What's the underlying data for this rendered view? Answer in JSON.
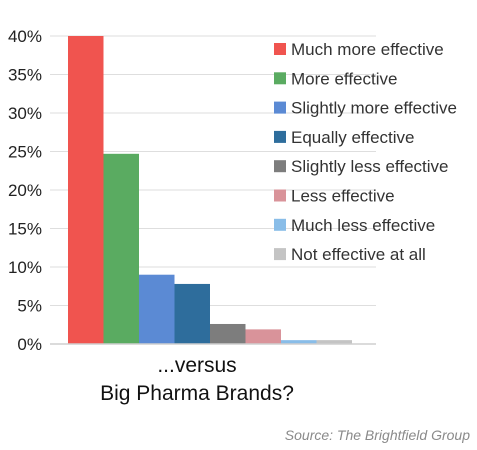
{
  "chart_data": {
    "type": "bar",
    "series": [
      {
        "name": "Much more effective",
        "value": 40,
        "color": "#f0544f"
      },
      {
        "name": "More effective",
        "value": 24.7,
        "color": "#5aab61"
      },
      {
        "name": "Slightly more effective",
        "value": 9,
        "color": "#5b8ad4"
      },
      {
        "name": "Equally effective",
        "value": 7.8,
        "color": "#2e6d9c"
      },
      {
        "name": "Slightly less effective",
        "value": 2.6,
        "color": "#7d7d7d"
      },
      {
        "name": "Less effective",
        "value": 1.9,
        "color": "#d9939a"
      },
      {
        "name": "Much less effective",
        "value": 0.5,
        "color": "#89bde8"
      },
      {
        "name": "Not effective at all",
        "value": 0.5,
        "color": "#c4c4c4"
      }
    ],
    "yticks": [
      "0%",
      "5%",
      "10%",
      "15%",
      "20%",
      "25%",
      "30%",
      "35%",
      "40%"
    ],
    "ylim": [
      0,
      40
    ],
    "xlabel_line1": "...versus",
    "xlabel_line2": "Big Pharma Brands?",
    "legend_position": "right",
    "gridlines": true
  },
  "source": "Source: The Brightfield Group"
}
